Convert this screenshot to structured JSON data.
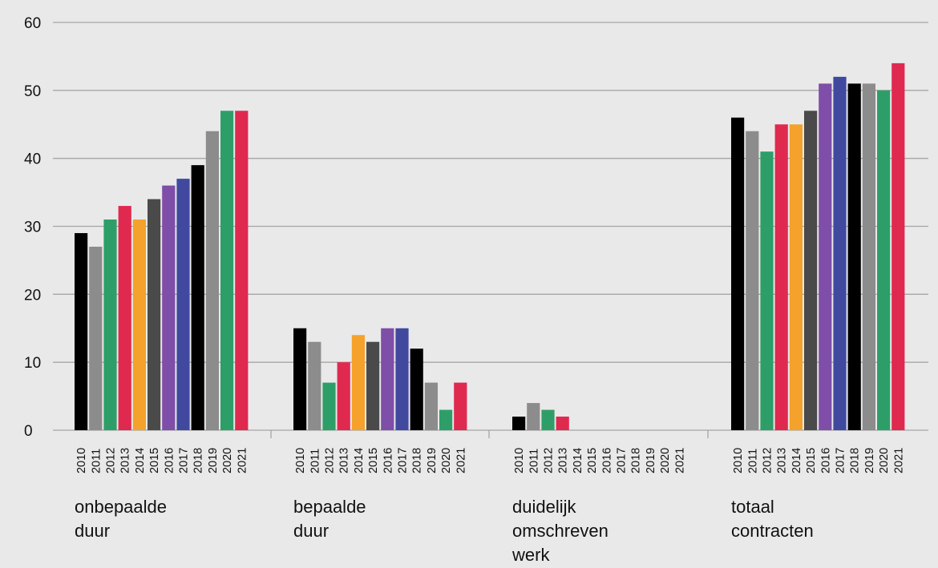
{
  "chart_data": {
    "type": "bar",
    "title": "",
    "xlabel": "",
    "ylabel": "",
    "ylim": [
      0,
      60
    ],
    "yticks": [
      0,
      10,
      20,
      30,
      40,
      50,
      60
    ],
    "grid": true,
    "legend": "none",
    "years": [
      "2010",
      "2011",
      "2012",
      "2013",
      "2014",
      "2015",
      "2016",
      "2017",
      "2018",
      "2019",
      "2020",
      "2021"
    ],
    "year_colors": [
      "#000000",
      "#8c8c8c",
      "#2e9e68",
      "#e0294f",
      "#f4a22b",
      "#4a4a4a",
      "#7e4ea8",
      "#41499f",
      "#000000",
      "#8c8c8c",
      "#2e9e68",
      "#e0294f"
    ],
    "groups": [
      {
        "label_lines": [
          "onbepaalde",
          "duur"
        ],
        "values": [
          29,
          27,
          31,
          33,
          31,
          34,
          36,
          37,
          39,
          44,
          47,
          47
        ]
      },
      {
        "label_lines": [
          "bepaalde",
          "duur"
        ],
        "values": [
          15,
          13,
          7,
          10,
          14,
          13,
          15,
          15,
          12,
          7,
          3,
          7
        ]
      },
      {
        "label_lines": [
          "duidelijk",
          "omschreven",
          "werk"
        ],
        "values": [
          2,
          4,
          3,
          2,
          0,
          0,
          0,
          0,
          0,
          0,
          0,
          0
        ]
      },
      {
        "label_lines": [
          "totaal",
          "contracten"
        ],
        "values": [
          46,
          44,
          41,
          45,
          45,
          47,
          51,
          52,
          51,
          51,
          50,
          54
        ]
      }
    ]
  }
}
